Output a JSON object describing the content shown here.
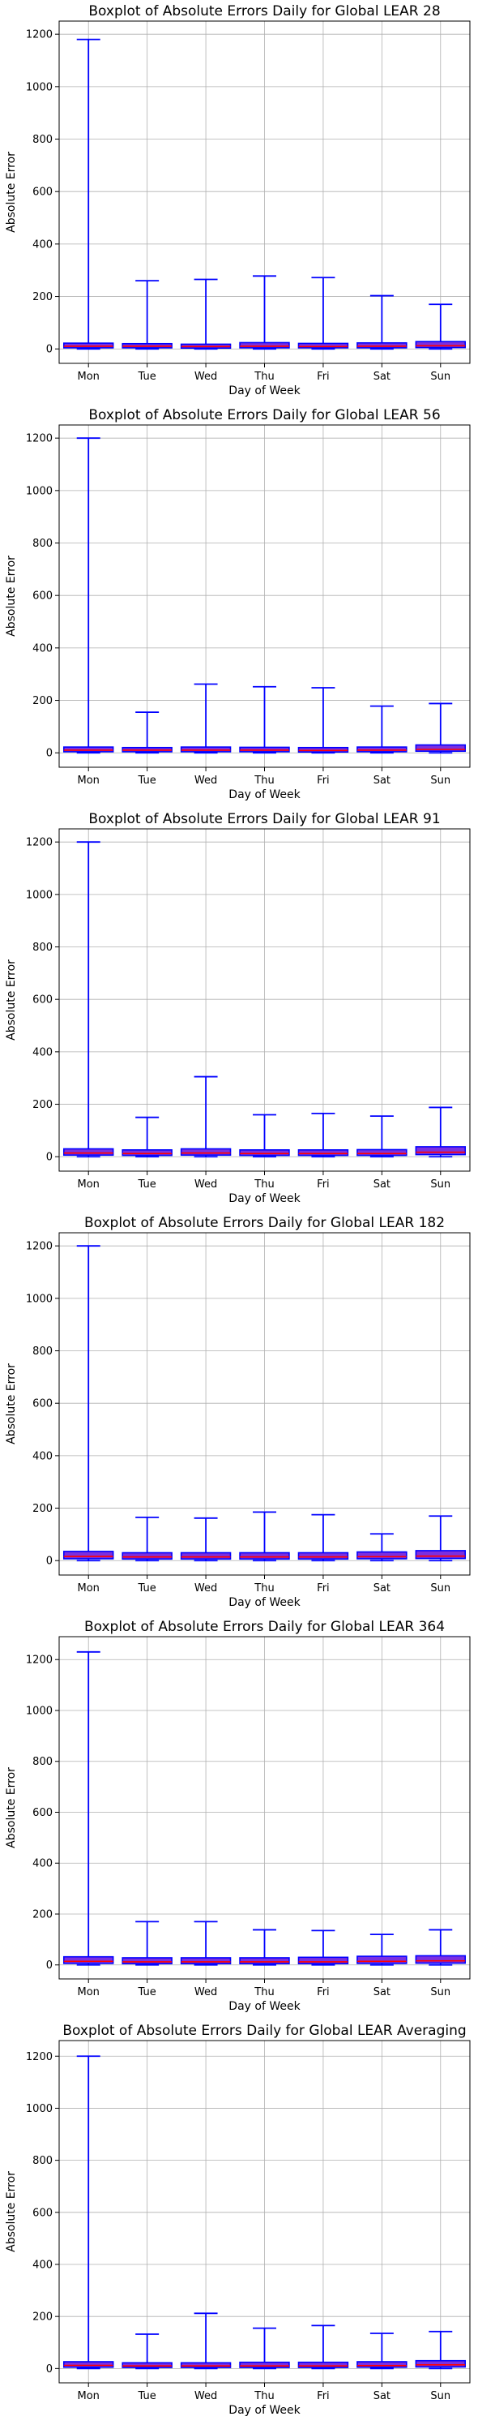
{
  "colors": {
    "box_fill": "#7b2fe0",
    "box_edge": "#0000ff",
    "whisker": "#0000ff",
    "median": "#ff0000",
    "grid": "#b0b0b0"
  },
  "chart_data": [
    {
      "type": "boxplot",
      "title": "Boxplot of Absolute Errors Daily for Global LEAR 28",
      "xlabel": "Day of Week",
      "ylabel": "Absolute Error",
      "ylim": [
        -55,
        1250
      ],
      "yticks": [
        0,
        200,
        400,
        600,
        800,
        1000,
        1200
      ],
      "grid": true,
      "categories": [
        "Mon",
        "Tue",
        "Wed",
        "Thu",
        "Fri",
        "Sat",
        "Sun"
      ],
      "min": [
        0,
        0,
        0,
        0,
        0,
        0,
        0
      ],
      "q1": [
        4,
        4,
        3,
        4,
        4,
        4,
        5
      ],
      "median": [
        10,
        10,
        9,
        10,
        9,
        10,
        12
      ],
      "q3": [
        22,
        20,
        18,
        24,
        21,
        23,
        28
      ],
      "max": [
        1180,
        260,
        265,
        278,
        272,
        203,
        170
      ]
    },
    {
      "type": "boxplot",
      "title": "Boxplot of Absolute Errors Daily for Global LEAR 56",
      "xlabel": "Day of Week",
      "ylabel": "Absolute Error",
      "ylim": [
        -55,
        1250
      ],
      "yticks": [
        0,
        200,
        400,
        600,
        800,
        1000,
        1200
      ],
      "grid": true,
      "categories": [
        "Mon",
        "Tue",
        "Wed",
        "Thu",
        "Fri",
        "Sat",
        "Sun"
      ],
      "min": [
        0,
        0,
        0,
        0,
        0,
        0,
        0
      ],
      "q1": [
        4,
        4,
        4,
        4,
        3,
        4,
        6
      ],
      "median": [
        10,
        10,
        10,
        10,
        9,
        10,
        13
      ],
      "q3": [
        22,
        20,
        22,
        21,
        20,
        22,
        30
      ],
      "max": [
        1200,
        155,
        262,
        252,
        248,
        178,
        188
      ]
    },
    {
      "type": "boxplot",
      "title": "Boxplot of Absolute Errors Daily for Global LEAR 91",
      "xlabel": "Day of Week",
      "ylabel": "Absolute Error",
      "ylim": [
        -55,
        1250
      ],
      "yticks": [
        0,
        200,
        400,
        600,
        800,
        1000,
        1200
      ],
      "grid": true,
      "categories": [
        "Mon",
        "Tue",
        "Wed",
        "Thu",
        "Fri",
        "Sat",
        "Sun"
      ],
      "min": [
        0,
        0,
        0,
        0,
        0,
        0,
        0
      ],
      "q1": [
        6,
        5,
        6,
        5,
        5,
        5,
        8
      ],
      "median": [
        14,
        12,
        14,
        12,
        12,
        12,
        17
      ],
      "q3": [
        30,
        26,
        30,
        26,
        26,
        27,
        38
      ],
      "max": [
        1200,
        150,
        305,
        160,
        165,
        155,
        188
      ]
    },
    {
      "type": "boxplot",
      "title": "Boxplot of Absolute Errors Daily for Global LEAR 182",
      "xlabel": "Day of Week",
      "ylabel": "Absolute Error",
      "ylim": [
        -55,
        1250
      ],
      "yticks": [
        0,
        200,
        400,
        600,
        800,
        1000,
        1200
      ],
      "grid": true,
      "categories": [
        "Mon",
        "Tue",
        "Wed",
        "Thu",
        "Fri",
        "Sat",
        "Sun"
      ],
      "min": [
        0,
        0,
        0,
        0,
        0,
        0,
        0
      ],
      "q1": [
        7,
        6,
        6,
        6,
        6,
        7,
        8
      ],
      "median": [
        16,
        14,
        14,
        14,
        14,
        15,
        17
      ],
      "q3": [
        35,
        30,
        30,
        30,
        30,
        33,
        38
      ],
      "max": [
        1200,
        165,
        162,
        185,
        175,
        102,
        170
      ]
    },
    {
      "type": "boxplot",
      "title": "Boxplot of Absolute Errors Daily for Global LEAR 364",
      "xlabel": "Day of Week",
      "ylabel": "Absolute Error",
      "ylim": [
        -55,
        1290
      ],
      "yticks": [
        0,
        200,
        400,
        600,
        800,
        1000,
        1200
      ],
      "grid": true,
      "categories": [
        "Mon",
        "Tue",
        "Wed",
        "Thu",
        "Fri",
        "Sat",
        "Sun"
      ],
      "min": [
        0,
        0,
        0,
        0,
        0,
        0,
        0
      ],
      "q1": [
        6,
        5,
        5,
        5,
        5,
        6,
        7
      ],
      "median": [
        14,
        12,
        12,
        12,
        12,
        14,
        16
      ],
      "q3": [
        32,
        28,
        28,
        28,
        30,
        34,
        36
      ],
      "max": [
        1230,
        170,
        170,
        138,
        135,
        120,
        138
      ]
    },
    {
      "type": "boxplot",
      "title": "Boxplot of Absolute Errors Daily for Global LEAR Averaging",
      "xlabel": "Day of Week",
      "ylabel": "Absolute Error",
      "ylim": [
        -55,
        1260
      ],
      "yticks": [
        0,
        200,
        400,
        600,
        800,
        1000,
        1200
      ],
      "grid": true,
      "categories": [
        "Mon",
        "Tue",
        "Wed",
        "Thu",
        "Fri",
        "Sat",
        "Sun"
      ],
      "min": [
        0,
        0,
        0,
        0,
        0,
        0,
        0
      ],
      "q1": [
        5,
        4,
        4,
        4,
        4,
        5,
        6
      ],
      "median": [
        12,
        10,
        10,
        10,
        10,
        11,
        14
      ],
      "q3": [
        26,
        22,
        22,
        24,
        24,
        26,
        30
      ],
      "max": [
        1200,
        132,
        212,
        155,
        165,
        135,
        142
      ]
    }
  ]
}
